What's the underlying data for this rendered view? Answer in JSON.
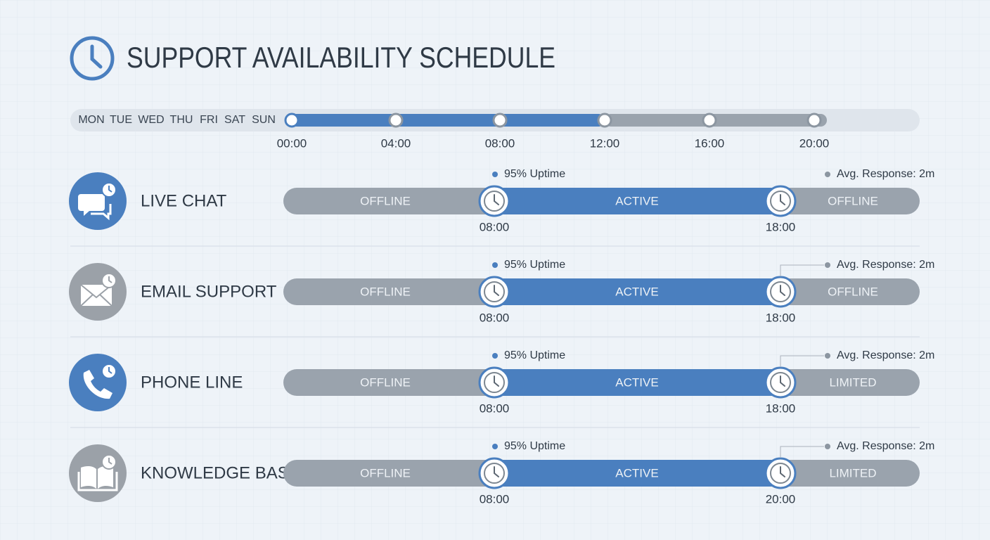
{
  "header": {
    "title": "SUPPORT AVAILABILITY SCHEDULE"
  },
  "timeline": {
    "days": [
      "MON",
      "TUE",
      "WED",
      "THU",
      "FRI",
      "SAT",
      "SUN"
    ],
    "hours": [
      "00:00",
      "04:00",
      "08:00",
      "12:00",
      "16:00",
      "20:00"
    ]
  },
  "services": [
    {
      "name": "LIVE CHAT",
      "icon": "chat",
      "color": "#4a7fbf",
      "segments": [
        "OFFLINE",
        "ACTIVE",
        "OFFLINE"
      ],
      "start": "08:00",
      "end": "18:00",
      "uptime": "95% Uptime",
      "response": "Avg. Response: 2m"
    },
    {
      "name": "EMAIL SUPPORT",
      "icon": "email",
      "color": "#9ba1a8",
      "segments": [
        "OFFLINE",
        "ACTIVE",
        "OFFLINE"
      ],
      "start": "08:00",
      "end": "18:00",
      "uptime": "95% Uptime",
      "response": "Avg. Response: 2m"
    },
    {
      "name": "PHONE LINE",
      "icon": "phone",
      "color": "#4a7fbf",
      "segments": [
        "OFFLINE",
        "ACTIVE",
        "LIMITED"
      ],
      "start": "08:00",
      "end": "18:00",
      "uptime": "95% Uptime",
      "response": "Avg. Response: 2m"
    },
    {
      "name": "KNOWLEDGE BASE",
      "icon": "book",
      "color": "#9ba1a8",
      "segments": [
        "OFFLINE",
        "ACTIVE",
        "LIMITED"
      ],
      "start": "08:00",
      "end": "20:00",
      "uptime": "95% Uptime",
      "response": "Avg. Response: 2m"
    }
  ]
}
